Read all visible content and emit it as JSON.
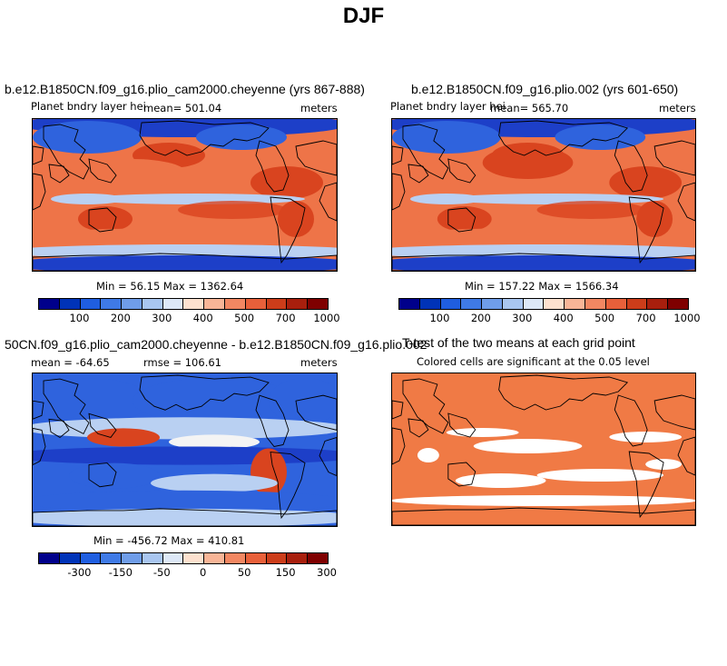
{
  "title": "DJF",
  "panels": [
    {
      "title": "b.e12.B1850CN.f09_g16.plio_cam2000.cheyenne (yrs 867-888)",
      "left_label": "Planet bndry layer hei",
      "center_label": "mean= 501.04",
      "right_label": "meters",
      "minmax": "Min =  56.15 Max = 1362.64"
    },
    {
      "title": "b.e12.B1850CN.f09_g16.plio.002 (yrs 601-650)",
      "left_label": "Planet bndry layer hei",
      "center_label": "mean= 565.70",
      "right_label": "meters",
      "minmax": "Min = 157.22 Max = 1566.34"
    },
    {
      "title": "50CN.f09_g16.plio_cam2000.cheyenne - b.e12.B1850CN.f09_g16.plio.002",
      "left_label": "mean = -64.65",
      "center_label": "rmse = 106.61",
      "right_label": "meters",
      "minmax": "Min = -456.72 Max = 410.81"
    },
    {
      "title": "T-test of the two means at each grid point",
      "subtitle": "Colored cells are significant at the 0.05 level"
    }
  ],
  "colorbar_abs": {
    "colors": [
      "#00008b",
      "#0033b8",
      "#1f5ee0",
      "#3f7ae6",
      "#6f9de9",
      "#a9c6f0",
      "#dde8f7",
      "#fde1cf",
      "#f8b597",
      "#f28762",
      "#e8603a",
      "#cc3d1a",
      "#a81f0d",
      "#7f0000"
    ],
    "ticks": [
      "100",
      "200",
      "300",
      "400",
      "500",
      "700",
      "1000"
    ]
  },
  "colorbar_diff": {
    "colors": [
      "#00008b",
      "#0033b8",
      "#1f5ee0",
      "#3f7ae6",
      "#6f9de9",
      "#a9c6f0",
      "#dde8f7",
      "#fde1cf",
      "#f8b597",
      "#f28762",
      "#e8603a",
      "#cc3d1a",
      "#a81f0d",
      "#7f0000"
    ],
    "ticks": [
      "-300",
      "-150",
      "-50",
      "0",
      "50",
      "150",
      "300"
    ]
  },
  "map_colors": {
    "ocean_warm": "#ee7448",
    "ocean_hot": "#d9441f",
    "cool": "#2f63dd",
    "cold": "#1d3fc8",
    "light": "#b9d0f2",
    "neutral": "#f4f4f4",
    "ttest": "#f07a45"
  }
}
